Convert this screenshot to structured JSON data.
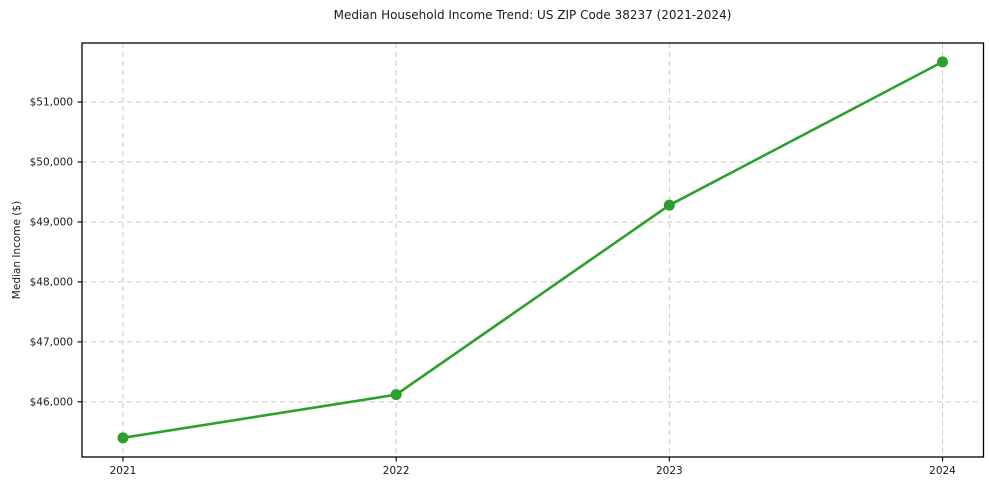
{
  "chart_data": {
    "type": "line",
    "title": "Median Household Income Trend: US ZIP Code 38237 (2021-2024)",
    "xlabel": "",
    "ylabel": "Median Income ($)",
    "x": [
      2021,
      2022,
      2023,
      2024
    ],
    "x_tick_labels": [
      "2021",
      "2022",
      "2023",
      "2024"
    ],
    "series": [
      {
        "name": "Median Household Income",
        "values": [
          45400,
          46120,
          49280,
          51670
        ]
      }
    ],
    "y_ticks": [
      46000,
      47000,
      48000,
      49000,
      50000,
      51000
    ],
    "y_tick_labels": [
      "$46,000",
      "$47,000",
      "$48,000",
      "$49,000",
      "$50,000",
      "$51,000"
    ],
    "xlim": [
      2020.85,
      2024.15
    ],
    "ylim": [
      45080,
      51985
    ],
    "grid": true,
    "grid_style": "dashed",
    "legend_position": "none",
    "colors": {
      "line": "#2ca02c",
      "marker": "#2ca02c",
      "grid": "#c9c9c9",
      "spine": "#000000",
      "text": "#1a1a1a",
      "background": "#ffffff"
    },
    "marker_radius": 5.5,
    "line_width": 2.6
  }
}
